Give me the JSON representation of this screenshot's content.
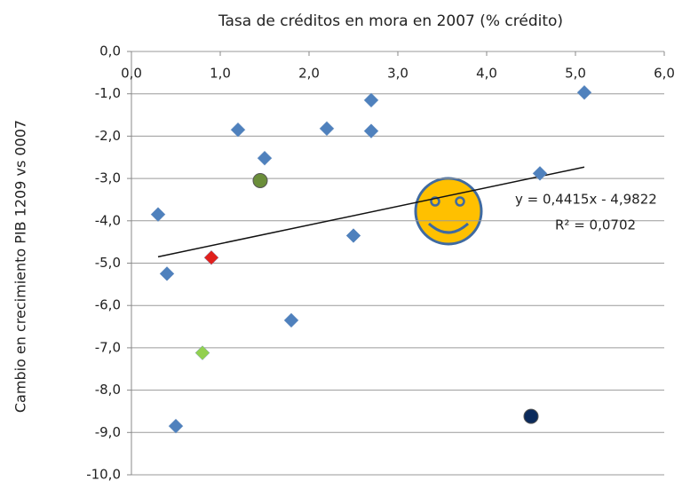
{
  "chart_data": {
    "type": "scatter",
    "title": "Tasa de créditos en mora en 2007 (% crédito)",
    "y_label": "Cambio en crecimiento PIB 1209 vs 0007",
    "xlim": [
      0,
      6
    ],
    "ylim": [
      -10,
      0
    ],
    "xticks": [
      {
        "value": 0,
        "label": "0,0"
      },
      {
        "value": 1,
        "label": "1,0"
      },
      {
        "value": 2,
        "label": "2,0"
      },
      {
        "value": 3,
        "label": "3,0"
      },
      {
        "value": 4,
        "label": "4,0"
      },
      {
        "value": 5,
        "label": "5,0"
      },
      {
        "value": 6,
        "label": "6,0"
      }
    ],
    "yticks": [
      {
        "value": 0,
        "label": "0,0"
      },
      {
        "value": -1,
        "label": "-1,0"
      },
      {
        "value": -2,
        "label": "-2,0"
      },
      {
        "value": -3,
        "label": "-3,0"
      },
      {
        "value": -4,
        "label": "-4,0"
      },
      {
        "value": -5,
        "label": "-5,0"
      },
      {
        "value": -6,
        "label": "-6,0"
      },
      {
        "value": -7,
        "label": "-7,0"
      },
      {
        "value": -8,
        "label": "-8,0"
      },
      {
        "value": -9,
        "label": "-9,0"
      },
      {
        "value": -10,
        "label": "-10,0"
      }
    ],
    "grid": true,
    "series": [
      {
        "color": "#4f81bd",
        "marker": "diamond",
        "x": [
          0.3,
          0.4,
          0.5,
          1.2,
          1.5,
          1.8,
          2.2,
          2.5,
          2.7,
          2.7,
          4.6,
          5.1
        ],
        "values": [
          -3.85,
          -5.25,
          -8.85,
          -1.85,
          -2.52,
          -6.35,
          -1.82,
          -4.35,
          -1.15,
          -1.88,
          -2.88,
          -0.97
        ]
      },
      {
        "color": "#6b8e3a",
        "marker": "circle",
        "x": [
          1.45
        ],
        "values": [
          -3.05
        ]
      },
      {
        "color": "#e0201c",
        "marker": "diamond",
        "x": [
          0.9
        ],
        "values": [
          -4.87
        ]
      },
      {
        "color": "#92d050",
        "marker": "diamond",
        "x": [
          0.8
        ],
        "values": [
          -7.12
        ]
      },
      {
        "color": "#0b2a5b",
        "marker": "circle",
        "x": [
          4.5
        ],
        "values": [
          -8.62
        ]
      }
    ],
    "trendline": {
      "slope": 0.4415,
      "intercept": -4.9822,
      "equation": "y = 0,4415x - 4,9822",
      "r_squared": "R² = 0,0702"
    }
  }
}
